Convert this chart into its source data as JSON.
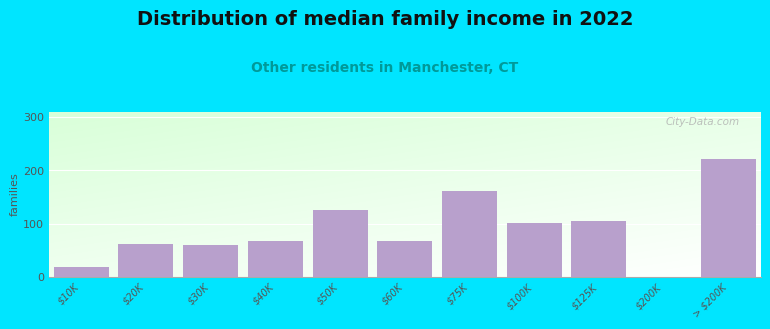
{
  "title": "Distribution of median family income in 2022",
  "subtitle": "Other residents in Manchester, CT",
  "ylabel": "families",
  "categories": [
    "$10K",
    "$20K",
    "$30K",
    "$40K",
    "$50K",
    "$60K",
    "$75K",
    "$100K",
    "$125K",
    "$200K",
    "> $200K"
  ],
  "values": [
    18,
    62,
    60,
    68,
    125,
    68,
    162,
    101,
    105,
    0,
    222
  ],
  "bar_color": "#b8a0cc",
  "background_outer": "#00e5ff",
  "yticks": [
    0,
    100,
    200,
    300
  ],
  "ylim": [
    0,
    310
  ],
  "title_fontsize": 14,
  "subtitle_fontsize": 10,
  "ylabel_fontsize": 8,
  "watermark": "City-Data.com",
  "tick_color": "#555555",
  "tick_fontsize": 7
}
